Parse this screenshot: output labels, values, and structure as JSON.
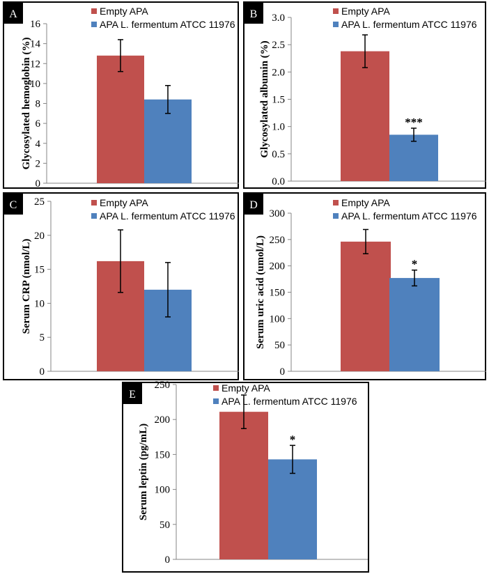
{
  "colors": {
    "empty": "#C0504D",
    "probiotic": "#4F81BD",
    "axis": "#868686",
    "frame": "#000000"
  },
  "chart_data": [
    {
      "type": "bar",
      "panel_label": "A",
      "ylabel": "Glycosylated hemoglobin (%)",
      "ylim": [
        0,
        16
      ],
      "yticks": [
        "0",
        "2",
        "4",
        "6",
        "8",
        "10",
        "12",
        "14",
        "16"
      ],
      "series": [
        {
          "name": "Empty APA",
          "color": "#C0504D",
          "values": [
            12.8
          ],
          "errors": [
            1.6
          ],
          "significance": ""
        },
        {
          "name": "APA L. fermentum ATCC 11976",
          "color": "#4F81BD",
          "values": [
            8.4
          ],
          "errors": [
            1.4
          ],
          "significance": ""
        }
      ]
    },
    {
      "type": "bar",
      "panel_label": "B",
      "ylabel": "Glycosylated albumin (%)",
      "ylim": [
        0,
        3.0
      ],
      "yticks": [
        "0.0",
        "0.5",
        "1.0",
        "1.5",
        "2.0",
        "2.5",
        "3.0"
      ],
      "series": [
        {
          "name": "Empty APA",
          "color": "#C0504D",
          "values": [
            2.38
          ],
          "errors": [
            0.3
          ],
          "significance": ""
        },
        {
          "name": "APA L. fermentum ATCC 11976",
          "color": "#4F81BD",
          "values": [
            0.85
          ],
          "errors": [
            0.12
          ],
          "significance": "***"
        }
      ]
    },
    {
      "type": "bar",
      "panel_label": "C",
      "ylabel": "Serum CRP (nmol/L)",
      "ylim": [
        0,
        25
      ],
      "yticks": [
        "0",
        "5",
        "10",
        "15",
        "20",
        "25"
      ],
      "series": [
        {
          "name": "Empty APA",
          "color": "#C0504D",
          "values": [
            16.2
          ],
          "errors": [
            4.6
          ],
          "significance": ""
        },
        {
          "name": "APA L. fermentum ATCC 11976",
          "color": "#4F81BD",
          "values": [
            12.0
          ],
          "errors": [
            4.0
          ],
          "significance": ""
        }
      ]
    },
    {
      "type": "bar",
      "panel_label": "D",
      "ylabel": "Serum uric acid (umol/L)",
      "ylim": [
        0,
        300
      ],
      "yticks": [
        "0",
        "50",
        "100",
        "150",
        "200",
        "250",
        "300"
      ],
      "series": [
        {
          "name": "Empty APA",
          "color": "#C0504D",
          "values": [
            246
          ],
          "errors": [
            23
          ],
          "significance": ""
        },
        {
          "name": "APA L. fermentum ATCC 11976",
          "color": "#4F81BD",
          "values": [
            177
          ],
          "errors": [
            15
          ],
          "significance": "*"
        }
      ]
    },
    {
      "type": "bar",
      "panel_label": "E",
      "ylabel": "Serum leptin (pg/mL)",
      "ylim": [
        0,
        250
      ],
      "yticks": [
        "0",
        "50",
        "100",
        "150",
        "200",
        "250"
      ],
      "series": [
        {
          "name": "Empty APA",
          "color": "#C0504D",
          "values": [
            211
          ],
          "errors": [
            24
          ],
          "significance": ""
        },
        {
          "name": "APA L. fermentum ATCC 11976",
          "color": "#4F81BD",
          "values": [
            143
          ],
          "errors": [
            20
          ],
          "significance": "*"
        }
      ]
    }
  ]
}
